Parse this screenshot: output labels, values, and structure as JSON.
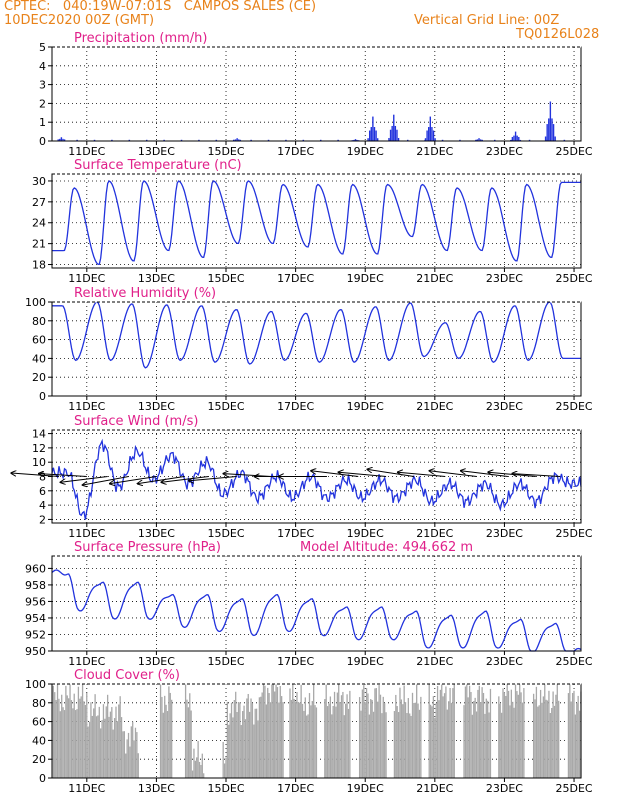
{
  "header": {
    "line1": "CPTEC:   040:19W-07:01S   CAMPOS SALES (CE)",
    "line2": "10DEC2020 00Z (GMT)",
    "grid_note": "Vertical Grid Line: 00Z",
    "code": "TQ0126L028"
  },
  "colors": {
    "header": "#e8821a",
    "title": "#e0208a",
    "series": "#2233dd",
    "cloud": "#a8a8a8",
    "axis": "#000000"
  },
  "x_axis": {
    "range_days": [
      0,
      15.2
    ],
    "ticks": [
      {
        "day": 1,
        "label": "11DEC"
      },
      {
        "day": 3,
        "label": "13DEC"
      },
      {
        "day": 5,
        "label": "15DEC"
      },
      {
        "day": 7,
        "label": "17DEC"
      },
      {
        "day": 9,
        "label": "19DEC"
      },
      {
        "day": 11,
        "label": "21DEC"
      },
      {
        "day": 13,
        "label": "23DEC"
      },
      {
        "day": 15,
        "label": "25DEC"
      }
    ]
  },
  "chart_data": [
    {
      "id": "precip",
      "type": "bar",
      "title": "Precipitation (mm/h)",
      "ylim": [
        0,
        5
      ],
      "yticks": [
        0,
        1,
        2,
        3,
        4,
        5
      ],
      "grid": true,
      "events": [
        {
          "day": 0.25,
          "mm": 0.2
        },
        {
          "day": 5.3,
          "mm": 0.15
        },
        {
          "day": 8.7,
          "mm": 0.1
        },
        {
          "day": 9.2,
          "mm": 1.3
        },
        {
          "day": 9.8,
          "mm": 1.4
        },
        {
          "day": 10.85,
          "mm": 1.3
        },
        {
          "day": 12.25,
          "mm": 0.15
        },
        {
          "day": 13.3,
          "mm": 0.5
        },
        {
          "day": 14.3,
          "mm": 2.1
        }
      ]
    },
    {
      "id": "temp",
      "type": "line",
      "title": "Surface Temperature (nC)",
      "ylim": [
        17.5,
        31
      ],
      "yticks": [
        18,
        21,
        24,
        27,
        30
      ],
      "grid": true,
      "daily_max": [
        29,
        30,
        30,
        30,
        30,
        30,
        29.5,
        29.5,
        29.5,
        29.5,
        29.5,
        29,
        29,
        29.5,
        29.8
      ],
      "daily_min": [
        20,
        18,
        18.5,
        20,
        19,
        21,
        21,
        20.5,
        19.5,
        19.5,
        22,
        20,
        20,
        18.5,
        19
      ],
      "max_hour_frac": 0.63,
      "min_hour_frac": 0.35
    },
    {
      "id": "rh",
      "type": "line",
      "title": "Relative Humidity (%)",
      "ylim": [
        0,
        100
      ],
      "yticks": [
        0,
        20,
        40,
        60,
        80,
        100
      ],
      "grid": true,
      "daily_max": [
        96,
        100,
        98,
        97,
        96,
        92,
        90,
        88,
        92,
        95,
        99,
        78,
        90,
        96,
        100
      ],
      "daily_min": [
        38,
        38,
        30,
        38,
        36,
        34,
        38,
        36,
        36,
        38,
        42,
        40,
        36,
        38,
        40
      ],
      "max_hour_frac": 0.3,
      "min_hour_frac": 0.68
    },
    {
      "id": "wind",
      "type": "line",
      "title": "Surface Wind (m/s)",
      "ylim": [
        1.5,
        14.5
      ],
      "yticks": [
        2,
        4,
        6,
        8,
        10,
        12,
        14
      ],
      "grid": true,
      "daily_max": [
        8.5,
        12.5,
        11.5,
        11,
        10,
        8.5,
        8,
        8,
        7.5,
        7.5,
        7.5,
        7,
        7,
        7,
        8
      ],
      "daily_min": [
        2.5,
        6.5,
        7.5,
        7,
        5.5,
        5,
        5,
        5,
        5,
        5,
        4.5,
        4.5,
        4,
        4.5,
        7
      ],
      "max_hour_frac": 0.45,
      "min_hour_frac": 0.9,
      "arrows": [
        {
          "day": 0.2,
          "dir": 0.12,
          "speed": 6.5
        },
        {
          "day": 1.0,
          "dir": 0.1,
          "speed": 7.5
        },
        {
          "day": 1.6,
          "dir": -0.2,
          "speed": 7.0
        },
        {
          "day": 2.2,
          "dir": -0.3,
          "speed": 7.0
        },
        {
          "day": 3.0,
          "dir": -0.25,
          "speed": 7.5
        },
        {
          "day": 3.8,
          "dir": -0.25,
          "speed": 7.5
        },
        {
          "day": 4.5,
          "dir": -0.2,
          "speed": 7.0
        },
        {
          "day": 5.3,
          "dir": -0.15,
          "speed": 8.0
        },
        {
          "day": 6.3,
          "dir": 0.1,
          "speed": 7.5
        },
        {
          "day": 7.2,
          "dir": 0.0,
          "speed": 6.5
        },
        {
          "day": 7.9,
          "dir": 0.0,
          "speed": 6.5
        },
        {
          "day": 8.8,
          "dir": 0.2,
          "speed": 5.5
        },
        {
          "day": 9.6,
          "dir": 0.15,
          "speed": 6.0
        },
        {
          "day": 10.4,
          "dir": 0.25,
          "speed": 5.5
        },
        {
          "day": 11.3,
          "dir": 0.15,
          "speed": 5.5
        },
        {
          "day": 12.2,
          "dir": 0.2,
          "speed": 5.5
        },
        {
          "day": 13.1,
          "dir": 0.2,
          "speed": 5.0
        },
        {
          "day": 13.9,
          "dir": 0.15,
          "speed": 4.5
        },
        {
          "day": 14.6,
          "dir": 0.1,
          "speed": 4.0
        }
      ]
    },
    {
      "id": "pressure",
      "type": "line",
      "title": "Surface Pressure (hPa)",
      "annotation": "Model Altitude: 494.662 m",
      "ylim": [
        950,
        961.5
      ],
      "yticks": [
        950,
        952,
        954,
        956,
        958,
        960
      ],
      "grid": true,
      "daily_max": [
        959.5,
        958.5,
        958.5,
        957,
        957,
        956.5,
        957,
        956.5,
        955.5,
        955.5,
        955,
        954.5,
        955,
        954,
        953.5
      ],
      "daily_min": [
        955,
        954,
        954,
        953,
        952.5,
        952,
        952.5,
        952,
        951.5,
        951.5,
        950.5,
        950.5,
        950.5,
        950,
        950
      ],
      "max_hour_frac": 0.45,
      "min_hour_frac": 0.75
    },
    {
      "id": "cloud",
      "type": "area",
      "title": "Cloud Cover (%)",
      "ylim": [
        0,
        100
      ],
      "yticks": [
        0,
        20,
        40,
        60,
        80,
        100
      ],
      "grid": true,
      "daily_mean": [
        85,
        70,
        45,
        85,
        20,
        75,
        95,
        80,
        85,
        85,
        80,
        90,
        85,
        90,
        85
      ],
      "gaps": [
        [
          2.5,
          3.1
        ],
        [
          3.45,
          3.8
        ],
        [
          4.35,
          4.9
        ],
        [
          6.65,
          6.8
        ],
        [
          7.6,
          7.8
        ],
        [
          8.55,
          8.8
        ],
        [
          9.6,
          9.8
        ],
        [
          10.6,
          10.8
        ],
        [
          11.55,
          11.8
        ],
        [
          12.6,
          12.8
        ],
        [
          13.55,
          13.8
        ],
        [
          14.55,
          14.8
        ]
      ]
    }
  ]
}
